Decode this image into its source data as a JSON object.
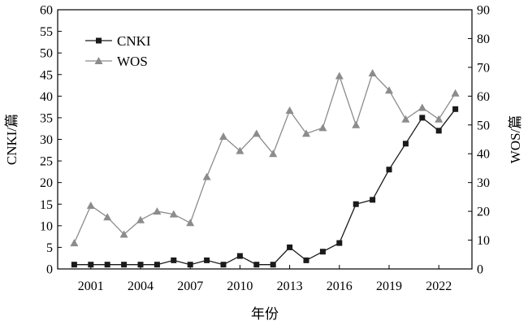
{
  "chart_data": {
    "type": "line",
    "title": "",
    "xlabel": "年份",
    "ylabel_left": "CNKI/篇",
    "ylabel_right": "WOS/篇",
    "x": [
      2000,
      2001,
      2002,
      2003,
      2004,
      2005,
      2006,
      2007,
      2008,
      2009,
      2010,
      2011,
      2012,
      2013,
      2014,
      2015,
      2016,
      2017,
      2018,
      2019,
      2020,
      2021,
      2022,
      2023
    ],
    "xticks": [
      "2001",
      "2004",
      "2007",
      "2010",
      "2013",
      "2016",
      "2019",
      "2022"
    ],
    "xlim": [
      1999,
      2024
    ],
    "ylim_left": [
      0,
      60
    ],
    "ylim_right": [
      0,
      90
    ],
    "yticks_left": [
      "0",
      "5",
      "10",
      "15",
      "20",
      "25",
      "30",
      "35",
      "40",
      "45",
      "50",
      "55",
      "60"
    ],
    "yticks_right": [
      "0",
      "10",
      "20",
      "30",
      "40",
      "50",
      "60",
      "70",
      "80",
      "90"
    ],
    "legend_position": "top-left",
    "grid": false,
    "series": [
      {
        "name": "CNKI",
        "axis": "left",
        "marker": "square",
        "color": "#1a1a1a",
        "values": [
          1,
          1,
          1,
          1,
          1,
          1,
          2,
          1,
          2,
          1,
          3,
          1,
          1,
          5,
          2,
          4,
          6,
          15,
          16,
          23,
          29,
          35,
          32,
          37
        ]
      },
      {
        "name": "WOS",
        "axis": "right",
        "marker": "triangle",
        "color": "#8c8c8c",
        "values": [
          9,
          22,
          18,
          12,
          17,
          20,
          19,
          16,
          32,
          46,
          41,
          47,
          40,
          55,
          47,
          49,
          67,
          50,
          68,
          62,
          52,
          56,
          52,
          61
        ]
      }
    ]
  }
}
